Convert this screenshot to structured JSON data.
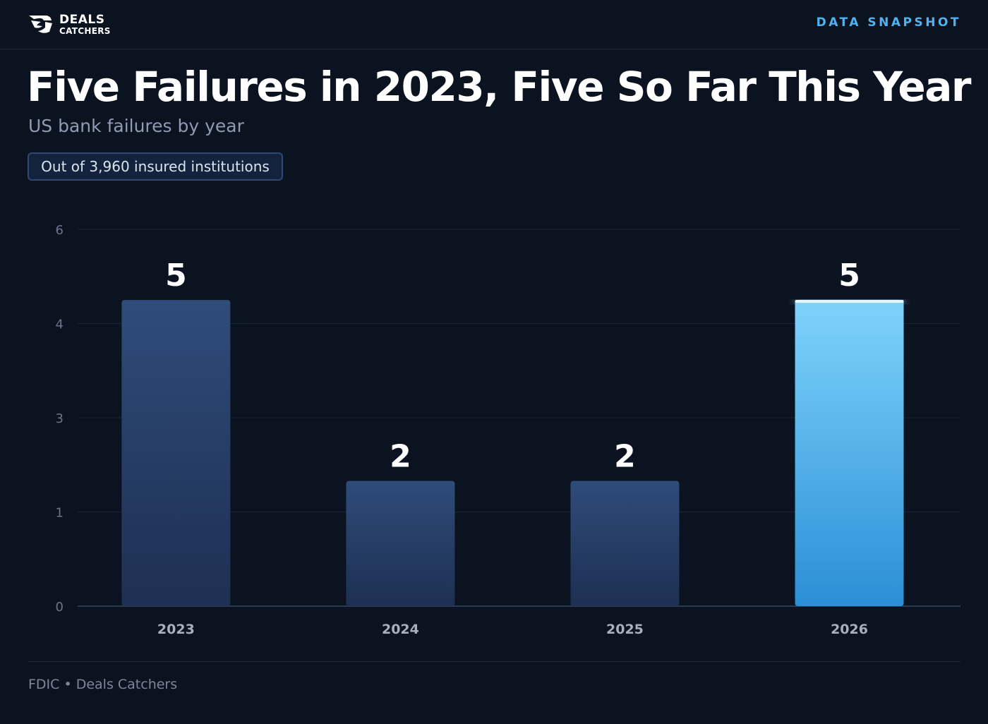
{
  "header": {
    "logo_line1": "DEALS",
    "logo_line2": "CATCHERS",
    "tag": "DATA SNAPSHOT"
  },
  "title": "Five Failures in 2023, Five So Far This Year",
  "subtitle": "US bank failures by year",
  "pill": "Out of 3,960 insured institutions",
  "source": "FDIC • Deals Catchers",
  "colors": {
    "background": "#0b1220",
    "accent": "#4fb3f2",
    "bar_default_top": "#2f4c7a",
    "bar_default_bottom": "#1e2f52",
    "bar_highlight_top": "#7fd3fb",
    "bar_highlight_bottom": "#2b8fd6"
  },
  "chart_data": {
    "type": "bar",
    "categories": [
      "2023",
      "2024",
      "2025",
      "2026"
    ],
    "values": [
      5,
      2,
      2,
      5
    ],
    "data_labels": [
      "5",
      "2",
      "2",
      "5"
    ],
    "highlight": "2026",
    "y_ticks": [
      {
        "label": "0",
        "value": 0
      },
      {
        "label": "1",
        "value": 1
      },
      {
        "label": "3",
        "value": 2
      },
      {
        "label": "4",
        "value": 3
      },
      {
        "label": "6",
        "value": 4
      }
    ],
    "ylim": [
      0,
      4
    ],
    "grid": true
  }
}
